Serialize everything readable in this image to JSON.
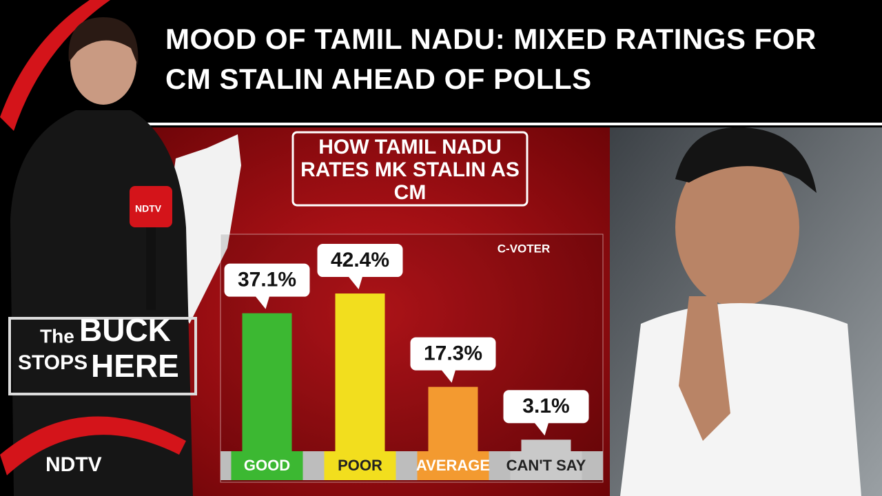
{
  "headline": "MOOD OF TAMIL NADU: MIXED RATINGS FOR CM STALIN AHEAD OF POLLS",
  "show": {
    "line1": "The",
    "line2": "BUCK",
    "line3": "STOPS",
    "line4": "HERE"
  },
  "logo": "NDTV",
  "chart_data": {
    "type": "bar",
    "title": "HOW TAMIL NADU RATES MK STALIN AS CM",
    "source": "C-VOTER",
    "categories": [
      "GOOD",
      "POOR",
      "AVERAGE",
      "CAN'T SAY"
    ],
    "values": [
      37.1,
      42.4,
      17.3,
      3.1
    ],
    "value_labels": [
      "37.1%",
      "42.4%",
      "17.3%",
      "3.1%"
    ],
    "colors": [
      "#3cb832",
      "#f2de1e",
      "#f39a30",
      "#c9c9c9"
    ]
  }
}
